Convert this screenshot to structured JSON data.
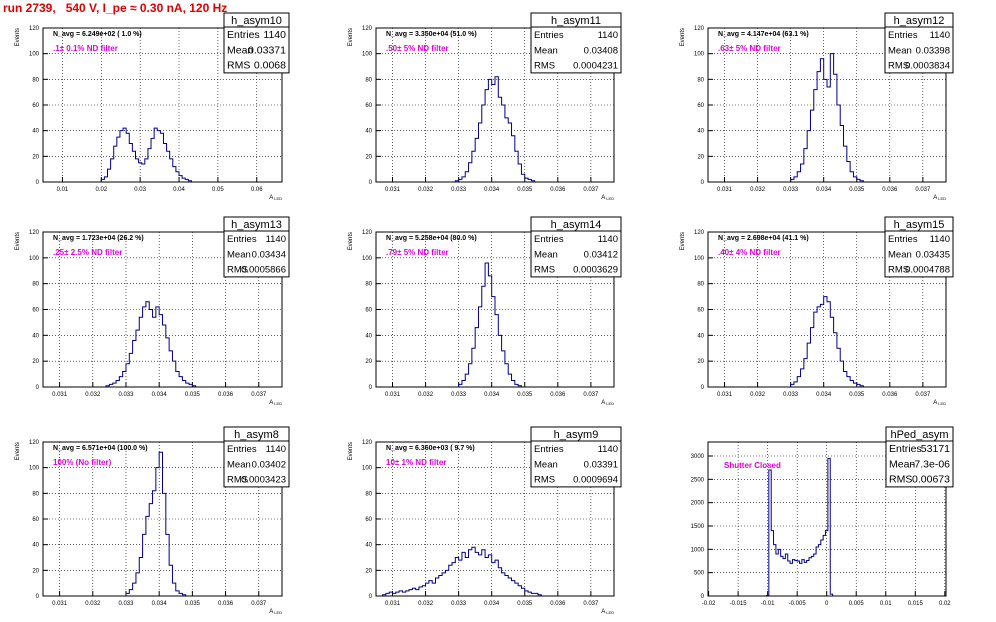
{
  "header": {
    "title": "run 2739,   540 V, I_pe ≈ 0.30 nA, 120 Hz"
  },
  "colors": {
    "hist": "#00008b",
    "title": "#e00000",
    "annotation": "#e000e0",
    "grid": "#000000"
  },
  "chart_data": [
    {
      "type": "histogram",
      "name": "h_asym10",
      "stats": {
        "entries": "1140",
        "mean": "0.03371",
        "rms": "0.0068"
      },
      "stat_labels": [
        "Entries",
        "Mean",
        "RMS"
      ],
      "navg": "N_avg = 6.249e+02 ( 1.0 %)",
      "filter": ".1± 0.1% ND filter",
      "xlabel": "A_LED",
      "ylabel": "Events",
      "xlim": [
        0.005,
        0.0665
      ],
      "ylim": [
        0,
        120
      ],
      "xticks": [
        "0.01",
        "0.02",
        "0.03",
        "0.04",
        "0.05",
        "0.06"
      ],
      "yticks": [
        "0",
        "20",
        "40",
        "60",
        "80",
        "100",
        "120"
      ],
      "bins": {
        "start": 0.02,
        "width": 0.0008,
        "values": [
          2,
          4,
          10,
          18,
          28,
          35,
          40,
          42,
          38,
          30,
          24,
          18,
          15,
          14,
          18,
          26,
          34,
          42,
          40,
          38,
          30,
          24,
          18,
          12,
          8,
          5,
          3,
          2,
          1
        ]
      }
    },
    {
      "type": "histogram",
      "name": "h_asym11",
      "stats": {
        "entries": "1140",
        "mean": "0.03408",
        "rms": "0.0004231"
      },
      "stat_labels": [
        "Entries",
        "Mean",
        "RMS"
      ],
      "navg": "N_avg = 3.350e+04 (51.0 %)",
      "filter": ".50± 5% ND filter",
      "xlabel": "A_LED",
      "ylabel": "Events",
      "xlim": [
        0.0305,
        0.0377
      ],
      "ylim": [
        0,
        120
      ],
      "xticks": [
        "0.031",
        "0.032",
        "0.033",
        "0.034",
        "0.035",
        "0.036",
        "0.037"
      ],
      "yticks": [
        "0",
        "20",
        "40",
        "60",
        "80",
        "100",
        "120"
      ],
      "bins": {
        "start": 0.0329,
        "width": 0.0001,
        "values": [
          1,
          2,
          4,
          8,
          15,
          24,
          34,
          46,
          60,
          72,
          80,
          76,
          82,
          66,
          60,
          50,
          46,
          36,
          24,
          14,
          6,
          3,
          2,
          1
        ]
      }
    },
    {
      "type": "histogram",
      "name": "h_asym12",
      "stats": {
        "entries": "1140",
        "mean": "0.03398",
        "rms": "0.0003834"
      },
      "stat_labels": [
        "Entries",
        "Mean",
        "RMS"
      ],
      "navg": "N_avg = 4.147e+04 (63.1 %)",
      "filter": ".63± 5% ND filter",
      "xlabel": "A_LED",
      "ylabel": "Events",
      "xlim": [
        0.0305,
        0.0377
      ],
      "ylim": [
        0,
        120
      ],
      "xticks": [
        "0.031",
        "0.032",
        "0.033",
        "0.034",
        "0.035",
        "0.036",
        "0.037"
      ],
      "yticks": [
        "0",
        "20",
        "40",
        "60",
        "80",
        "100",
        "120"
      ],
      "bins": {
        "start": 0.033,
        "width": 0.0001,
        "values": [
          2,
          4,
          8,
          14,
          26,
          40,
          56,
          72,
          86,
          96,
          80,
          74,
          100,
          84,
          60,
          44,
          28,
          16,
          8,
          4,
          2,
          1
        ]
      }
    },
    {
      "type": "histogram",
      "name": "h_asym13",
      "stats": {
        "entries": "1140",
        "mean": "0.03434",
        "rms": "0.0005866"
      },
      "stat_labels": [
        "Entries",
        "Mean",
        "RMS"
      ],
      "navg": "N_avg = 1.723e+04 (26.2 %)",
      "filter": ".25± 2.5% ND filter",
      "xlabel": "A_LED",
      "ylabel": "Events",
      "xlim": [
        0.0305,
        0.0377
      ],
      "ylim": [
        0,
        120
      ],
      "xticks": [
        "0.031",
        "0.032",
        "0.033",
        "0.034",
        "0.035",
        "0.036",
        "0.037"
      ],
      "yticks": [
        "0",
        "20",
        "40",
        "60",
        "80",
        "100",
        "120"
      ],
      "bins": {
        "start": 0.0324,
        "width": 0.0001,
        "values": [
          1,
          2,
          3,
          5,
          8,
          12,
          18,
          26,
          36,
          44,
          54,
          62,
          66,
          60,
          54,
          62,
          56,
          48,
          38,
          28,
          20,
          12,
          8,
          5,
          3,
          2,
          1
        ]
      }
    },
    {
      "type": "histogram",
      "name": "h_asym14",
      "stats": {
        "entries": "1140",
        "mean": "0.03412",
        "rms": "0.0003629"
      },
      "stat_labels": [
        "Entries",
        "Mean",
        "RMS"
      ],
      "navg": "N_avg = 5.258e+04 (80.0 %)",
      "filter": ".79± 5% ND filter",
      "xlabel": "A_LED",
      "ylabel": "Events",
      "xlim": [
        0.0305,
        0.0377
      ],
      "ylim": [
        0,
        120
      ],
      "xticks": [
        "0.031",
        "0.032",
        "0.033",
        "0.034",
        "0.035",
        "0.036",
        "0.037"
      ],
      "yticks": [
        "0",
        "20",
        "40",
        "60",
        "80",
        "100",
        "120"
      ],
      "bins": {
        "start": 0.033,
        "width": 0.0001,
        "values": [
          2,
          5,
          10,
          18,
          30,
          46,
          62,
          78,
          96,
          86,
          70,
          56,
          40,
          28,
          18,
          10,
          5,
          2,
          1
        ]
      }
    },
    {
      "type": "histogram",
      "name": "h_asym15",
      "stats": {
        "entries": "1140",
        "mean": "0.03435",
        "rms": "0.0004788"
      },
      "stat_labels": [
        "Entries",
        "Mean",
        "RMS"
      ],
      "navg": "N_avg = 2.698e+04 (41.1 %)",
      "filter": ".40± 4% ND filter",
      "xlabel": "A_LED",
      "ylabel": "Events",
      "xlim": [
        0.0305,
        0.0377
      ],
      "ylim": [
        0,
        120
      ],
      "xticks": [
        "0.031",
        "0.032",
        "0.033",
        "0.034",
        "0.035",
        "0.036",
        "0.037"
      ],
      "yticks": [
        "0",
        "20",
        "40",
        "60",
        "80",
        "100",
        "120"
      ],
      "bins": {
        "start": 0.033,
        "width": 0.0001,
        "values": [
          2,
          4,
          8,
          14,
          22,
          34,
          46,
          58,
          62,
          64,
          70,
          66,
          54,
          42,
          30,
          20,
          12,
          8,
          5,
          3,
          2,
          1
        ]
      }
    },
    {
      "type": "histogram",
      "name": "h_asym8",
      "stats": {
        "entries": "1140",
        "mean": "0.03402",
        "rms": "0.0003423"
      },
      "stat_labels": [
        "Entries",
        "Mean",
        "RMS"
      ],
      "navg": "N_avg = 6.571e+04 (100.0 %)",
      "filter": "100% (No filter)",
      "xlabel": "A_LED",
      "ylabel": "Events",
      "xlim": [
        0.0305,
        0.0377
      ],
      "ylim": [
        0,
        120
      ],
      "xticks": [
        "0.031",
        "0.032",
        "0.033",
        "0.034",
        "0.035",
        "0.036",
        "0.037"
      ],
      "yticks": [
        "0",
        "20",
        "40",
        "60",
        "80",
        "100",
        "120"
      ],
      "bins": {
        "start": 0.033,
        "width": 0.0001,
        "values": [
          2,
          5,
          10,
          18,
          30,
          48,
          62,
          72,
          82,
          100,
          112,
          80,
          48,
          24,
          10,
          4,
          2,
          1
        ]
      }
    },
    {
      "type": "histogram",
      "name": "h_asym9",
      "stats": {
        "entries": "1140",
        "mean": "0.03391",
        "rms": "0.0009694"
      },
      "stat_labels": [
        "Entries",
        "Mean",
        "RMS"
      ],
      "navg": "N_avg = 6.360e+03 ( 9.7 %)",
      "filter": "10± 1% ND filter",
      "xlabel": "A_LED",
      "ylabel": "Events",
      "xlim": [
        0.0305,
        0.0377
      ],
      "ylim": [
        0,
        120
      ],
      "xticks": [
        "0.031",
        "0.032",
        "0.033",
        "0.034",
        "0.035",
        "0.036",
        "0.037"
      ],
      "yticks": [
        "0",
        "20",
        "40",
        "60",
        "80",
        "100",
        "120"
      ],
      "bins": {
        "start": 0.0307,
        "width": 0.0001,
        "values": [
          1,
          2,
          3,
          2,
          3,
          4,
          3,
          4,
          5,
          6,
          5,
          7,
          8,
          10,
          12,
          10,
          14,
          16,
          18,
          20,
          24,
          26,
          30,
          28,
          34,
          30,
          36,
          38,
          34,
          32,
          36,
          30,
          32,
          26,
          28,
          22,
          18,
          16,
          14,
          12,
          10,
          8,
          6,
          4,
          3,
          2,
          2,
          1
        ]
      }
    },
    {
      "type": "histogram",
      "name": "hPed_asym",
      "stats": {
        "entries": "53171",
        "mean": "-7.3e-06",
        "rms": "0.00673"
      },
      "stat_labels": [
        "Entries",
        "Mean",
        "RMS"
      ],
      "navg": "",
      "filter": "Shutter Closed",
      "xlabel": "",
      "ylabel": "",
      "xlim": [
        -0.0201,
        0.0202
      ],
      "ylim": [
        0,
        3300
      ],
      "xticks": [
        "-0.02",
        "-0.015",
        "-0.01",
        "-0.005",
        "0",
        "0.005",
        "0.01",
        "0.015",
        "0.02"
      ],
      "yticks": [
        "0",
        "500",
        "1000",
        "1500",
        "2000",
        "2500",
        "3000"
      ],
      "bins": {
        "start": -0.0102,
        "width": 0.0004,
        "values": [
          10,
          2700,
          1400,
          1100,
          900,
          1000,
          850,
          800,
          900,
          750,
          700,
          780,
          760,
          750,
          700,
          780,
          720,
          760,
          820,
          850,
          900,
          1050,
          1100,
          1200,
          1300,
          1400,
          2950,
          40
        ]
      }
    }
  ]
}
